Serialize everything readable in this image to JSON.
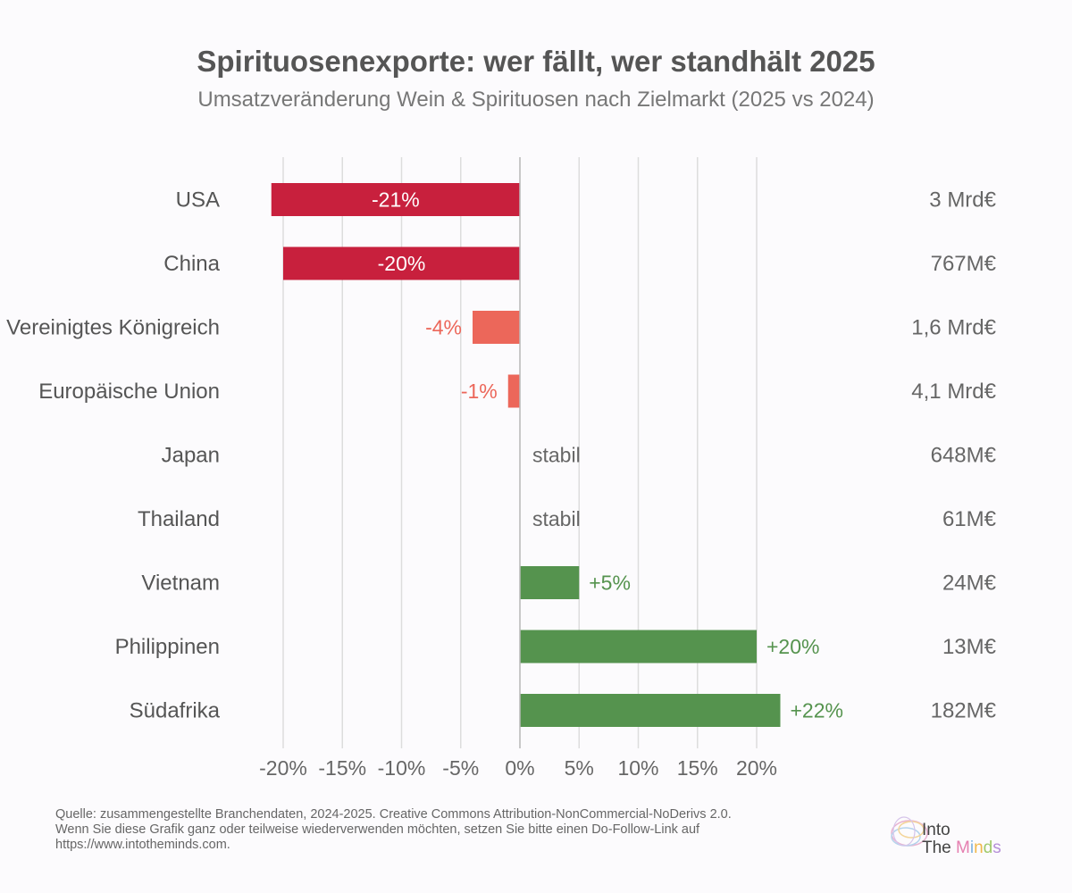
{
  "chart_data": {
    "type": "bar",
    "orientation": "horizontal",
    "title": "Spirituosenexporte: wer fällt, wer standhält 2025",
    "subtitle": "Umsatzveränderung Wein & Spirituosen nach Zielmarkt (2025 vs 2024)",
    "categories": [
      "USA",
      "China",
      "Vereinigtes Königreich",
      "Europäische Union",
      "Japan",
      "Thailand",
      "Vietnam",
      "Philippinen",
      "Südafrika"
    ],
    "values": [
      -21,
      -20,
      -4,
      -1,
      0,
      0,
      5,
      20,
      22
    ],
    "value_labels": [
      "-21%",
      "-20%",
      "-4%",
      "-1%",
      "stabil",
      "stabil",
      "+5%",
      "+20%",
      "+22%"
    ],
    "market_volumes": [
      "3 Mrd€",
      "767M€",
      "1,6 Mrd€",
      "4,1 Mrd€",
      "648M€",
      "61M€",
      "24M€",
      "13M€",
      "182M€"
    ],
    "xlim": [
      -22,
      22
    ],
    "x_ticks": [
      -20,
      -15,
      -10,
      -5,
      0,
      5,
      10,
      15,
      20
    ],
    "x_tick_labels": [
      "-20%",
      "-15%",
      "-10%",
      "-5%",
      "0%",
      "5%",
      "10%",
      "15%",
      "20%"
    ],
    "grid": true,
    "legend": "none"
  },
  "colors": {
    "strong_decline": "#c8203d",
    "decline": "#ec675a",
    "growth": "#55934e",
    "stable_label": "#666666",
    "grid": "#dddddd",
    "text": "#555555"
  },
  "source": {
    "line1": "Quelle: zusammengestellte Branchendaten, 2024-2025. Creative Commons Attribution-NonCommercial-NoDerivs 2.0.",
    "line2": "Wenn Sie diese Grafik ganz oder teilweise wiederverwenden möchten, setzen Sie bitte einen Do-Follow-Link auf",
    "line3": "https://www.intotheminds.com."
  },
  "logo": {
    "into": "Into",
    "the": "The",
    "minds": "Minds"
  }
}
